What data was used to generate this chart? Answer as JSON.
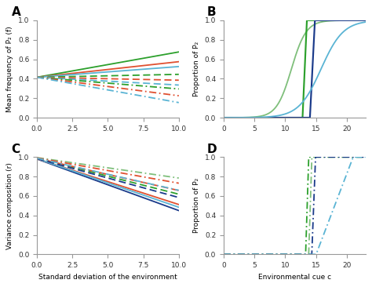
{
  "fig_width": 4.74,
  "fig_height": 3.66,
  "dpi": 100,
  "background": "#ffffff",
  "colors": {
    "dark_green": "#2ca02c",
    "light_green": "#7fbf7b",
    "orange_red": "#e05030",
    "dark_blue": "#1a3a8a",
    "light_blue": "#5ab4d4"
  },
  "panel_A": {
    "title": "A",
    "ylabel": "Mean frequency of P₂ (f)",
    "xlim": [
      0,
      10
    ],
    "ylim": [
      0.0,
      1.0
    ],
    "xticks": [
      0.0,
      2.5,
      5.0,
      7.5,
      10.0
    ],
    "yticks": [
      0.0,
      0.2,
      0.4,
      0.6,
      0.8,
      1.0
    ]
  },
  "panel_B": {
    "title": "B",
    "ylabel": "Proportion of P₂",
    "xlim": [
      0,
      23
    ],
    "ylim": [
      0.0,
      1.0
    ],
    "xticks": [
      0,
      5,
      10,
      15,
      20
    ],
    "yticks": [
      0.0,
      0.2,
      0.4,
      0.6,
      0.8,
      1.0
    ]
  },
  "panel_C": {
    "title": "C",
    "xlabel": "Standard deviation of the environment",
    "ylabel": "Variance composition (r)",
    "xlim": [
      0,
      10
    ],
    "ylim": [
      0.0,
      1.0
    ],
    "xticks": [
      0.0,
      2.5,
      5.0,
      7.5,
      10.0
    ],
    "yticks": [
      0.0,
      0.2,
      0.4,
      0.6,
      0.8,
      1.0
    ]
  },
  "panel_D": {
    "title": "D",
    "xlabel": "Environmental cue c",
    "ylabel": "Proportion of P₂",
    "xlim": [
      0,
      23
    ],
    "ylim": [
      0.0,
      1.0
    ],
    "xticks": [
      0,
      5,
      10,
      15,
      20
    ],
    "yticks": [
      0.0,
      0.2,
      0.4,
      0.6,
      0.8,
      1.0
    ]
  }
}
